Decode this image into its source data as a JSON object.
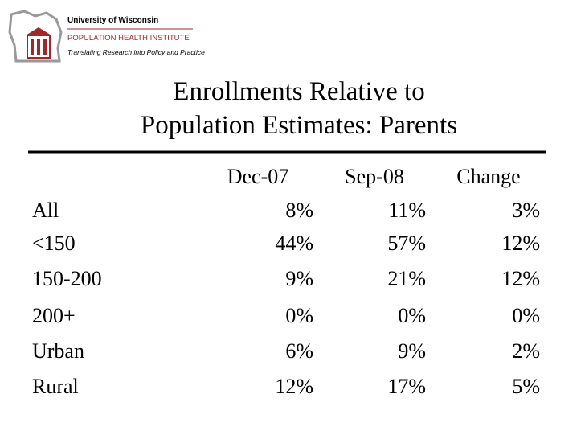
{
  "header": {
    "university": "University of Wisconsin",
    "institute": "POPULATION HEALTH INSTITUTE",
    "tagline": "Translating Research into Policy and Practice"
  },
  "title": [
    "Enrollments Relative to",
    "Population Estimates: Parents"
  ],
  "table": {
    "columns": [
      "Dec-07",
      "Sep-08",
      "Change"
    ],
    "rows": [
      [
        "All",
        "8%",
        "11%",
        "3%"
      ],
      [
        "<150",
        "44%",
        "57%",
        "12%"
      ],
      [
        "150-200",
        "9%",
        "21%",
        "12%"
      ],
      [
        "200+",
        "0%",
        "0%",
        "0%"
      ],
      [
        "Urban",
        "6%",
        "9%",
        "2%"
      ],
      [
        "Rural",
        "12%",
        "17%",
        "5%"
      ]
    ]
  }
}
